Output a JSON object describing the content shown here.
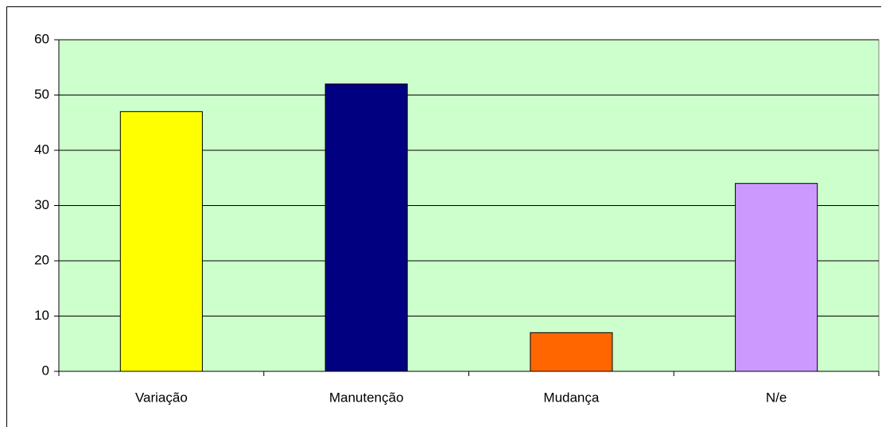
{
  "chart_data": {
    "type": "bar",
    "categories": [
      "Variação",
      "Manutenção",
      "Mudança",
      "N/e"
    ],
    "values": [
      47,
      52,
      7,
      34
    ],
    "colors": [
      "#ffff00",
      "#000080",
      "#ff6600",
      "#cc99ff"
    ],
    "plot_background": "#ccffcc",
    "ylim": [
      0,
      60
    ],
    "yticks": [
      0,
      10,
      20,
      30,
      40,
      50,
      60
    ],
    "grid": true
  }
}
